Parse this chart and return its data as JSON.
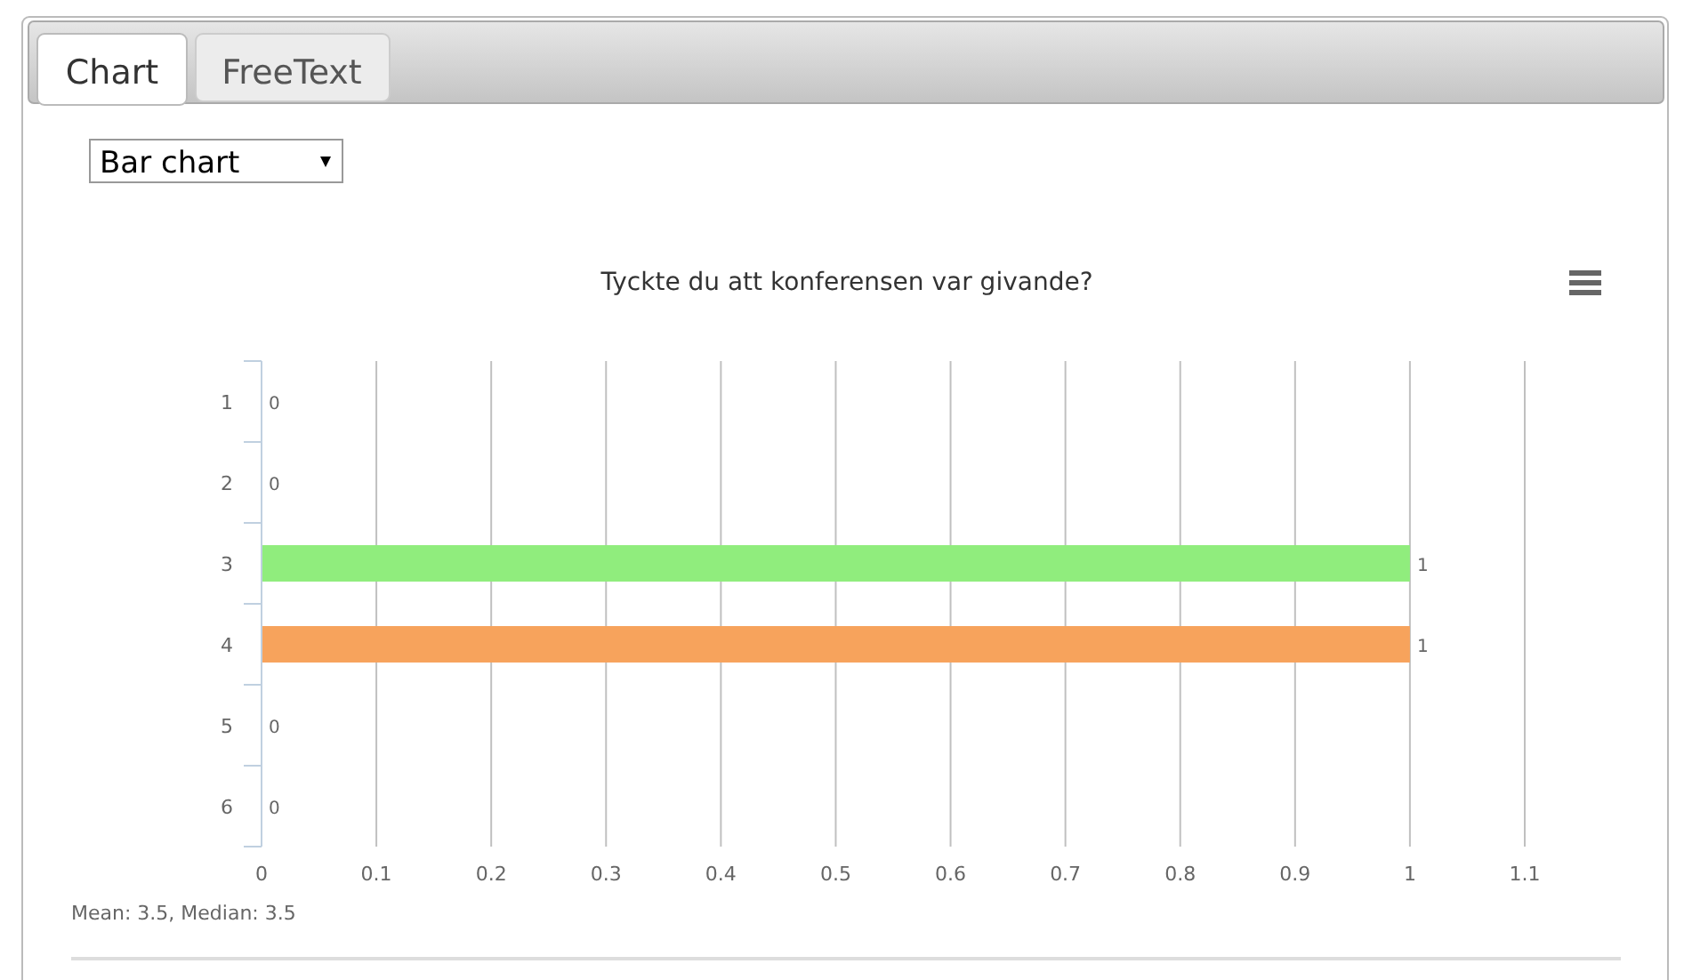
{
  "chart_data": {
    "type": "bar",
    "orientation": "horizontal",
    "title": "Tyckte du att konferensen var givande?",
    "categories": [
      "1",
      "2",
      "3",
      "4",
      "5",
      "6"
    ],
    "values": [
      0,
      0,
      1,
      1,
      0,
      0
    ],
    "colors": [
      "#7cb5ec",
      "#434348",
      "#90ed7d",
      "#f7a35c",
      "#8085e9",
      "#f15c80"
    ],
    "xlim": [
      0,
      1.1
    ],
    "xticks": [
      0,
      0.1,
      0.2,
      0.3,
      0.4,
      0.5,
      0.6,
      0.7,
      0.8,
      0.9,
      1,
      1.1
    ],
    "grid": "x",
    "data_labels": true,
    "annotations": [
      "Chart",
      "FreeText",
      "Bar chart",
      "Mean: 3.5, Median: 3.5"
    ]
  }
}
